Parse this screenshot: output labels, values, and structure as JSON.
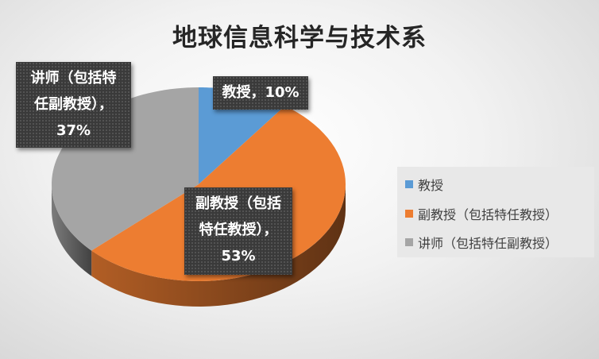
{
  "chart_data": {
    "type": "pie",
    "style": "3d",
    "title": "地球信息科学与技术系",
    "categories": [
      "教授",
      "副教授（包括特任教授）",
      "讲师（包括特任副教授）"
    ],
    "values": [
      10,
      53,
      37
    ],
    "colors": [
      "#5b9bd5",
      "#ed7d31",
      "#a5a5a5"
    ],
    "data_labels": [
      "教授，10%",
      "副教授（包括特任教授），53%",
      "讲师（包括特任副教授），37%"
    ],
    "data_label_lines": [
      [
        "教授，10%"
      ],
      [
        "副教授（包括",
        "特任教授），",
        "53%"
      ],
      [
        "讲师（包括特",
        "任副教授），",
        "37%"
      ]
    ],
    "legend_position": "right"
  }
}
